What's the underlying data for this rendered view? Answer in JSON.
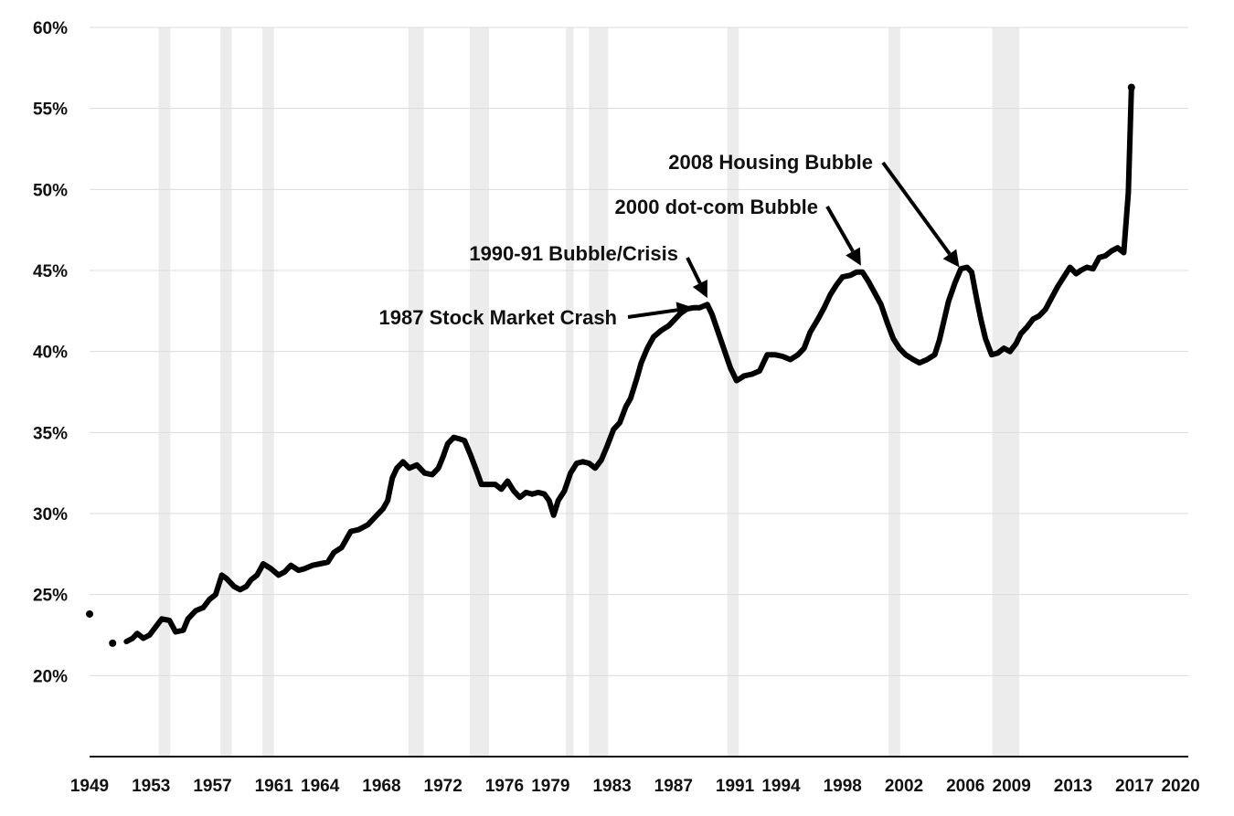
{
  "chart_data": {
    "type": "line",
    "title": "",
    "xlabel": "",
    "ylabel": "",
    "ylim": [
      15,
      60
    ],
    "yticks": [
      "20%",
      "25%",
      "30%",
      "35%",
      "40%",
      "45%",
      "50%",
      "55%",
      "60%"
    ],
    "ytick_values": [
      20,
      25,
      30,
      35,
      40,
      45,
      50,
      55,
      60
    ],
    "xlim": [
      1949.0,
      2020.5
    ],
    "xticks": [
      "1949",
      "1953",
      "1957",
      "1961",
      "1964",
      "1968",
      "1972",
      "1976",
      "1979",
      "1983",
      "1987",
      "1991",
      "1994",
      "1998",
      "2002",
      "2006",
      "2009",
      "2013",
      "2017",
      "2020"
    ],
    "xtick_values": [
      1949.0,
      1953.0,
      1957.0,
      1961.0,
      1964.0,
      1968.0,
      1972.0,
      1976.0,
      1979.0,
      1983.0,
      1987.0,
      1991.0,
      1994.0,
      1998.0,
      2002.0,
      2006.0,
      2009.0,
      2013.0,
      2017.0,
      2020.0
    ],
    "grid": true,
    "recession_shading": [
      [
        1953.5,
        1954.25
      ],
      [
        1957.5,
        1958.25
      ],
      [
        1960.25,
        1961.0
      ],
      [
        1969.75,
        1970.75
      ],
      [
        1973.75,
        1975.0
      ],
      [
        1980.0,
        1980.5
      ],
      [
        1981.5,
        1982.75
      ],
      [
        1990.5,
        1991.25
      ],
      [
        2001.0,
        2001.75
      ],
      [
        2007.75,
        2009.5
      ]
    ],
    "isolated_points": [
      {
        "x": 1949.0,
        "y": 23.8
      },
      {
        "x": 1950.5,
        "y": 22.0
      }
    ],
    "series": [
      {
        "values": [
          [
            1951.4,
            22.1
          ],
          [
            1951.8,
            22.3
          ],
          [
            1952.1,
            22.6
          ],
          [
            1952.5,
            22.3
          ],
          [
            1952.9,
            22.5
          ],
          [
            1953.3,
            23.0
          ],
          [
            1953.7,
            23.5
          ],
          [
            1954.2,
            23.4
          ],
          [
            1954.6,
            22.7
          ],
          [
            1955.1,
            22.8
          ],
          [
            1955.4,
            23.5
          ],
          [
            1955.9,
            24.0
          ],
          [
            1956.4,
            24.2
          ],
          [
            1956.8,
            24.7
          ],
          [
            1957.2,
            25.0
          ],
          [
            1957.6,
            26.2
          ],
          [
            1957.9,
            26.0
          ],
          [
            1958.4,
            25.5
          ],
          [
            1958.8,
            25.3
          ],
          [
            1959.2,
            25.5
          ],
          [
            1959.5,
            25.9
          ],
          [
            1959.9,
            26.2
          ],
          [
            1960.3,
            26.9
          ],
          [
            1960.8,
            26.6
          ],
          [
            1961.3,
            26.2
          ],
          [
            1961.7,
            26.4
          ],
          [
            1962.1,
            26.8
          ],
          [
            1962.6,
            26.5
          ],
          [
            1963.0,
            26.6
          ],
          [
            1963.5,
            26.8
          ],
          [
            1964.0,
            26.9
          ],
          [
            1964.5,
            27.0
          ],
          [
            1964.9,
            27.6
          ],
          [
            1965.4,
            27.9
          ],
          [
            1966.0,
            28.9
          ],
          [
            1966.5,
            29.0
          ],
          [
            1967.1,
            29.3
          ],
          [
            1967.6,
            29.8
          ],
          [
            1968.1,
            30.3
          ],
          [
            1968.4,
            30.8
          ],
          [
            1968.7,
            32.2
          ],
          [
            1969.0,
            32.8
          ],
          [
            1969.4,
            33.2
          ],
          [
            1969.8,
            32.8
          ],
          [
            1970.3,
            33.0
          ],
          [
            1970.8,
            32.5
          ],
          [
            1971.3,
            32.4
          ],
          [
            1971.7,
            32.8
          ],
          [
            1972.0,
            33.5
          ],
          [
            1972.3,
            34.3
          ],
          [
            1972.7,
            34.7
          ],
          [
            1973.1,
            34.6
          ],
          [
            1973.4,
            34.5
          ],
          [
            1973.8,
            33.6
          ],
          [
            1974.2,
            32.6
          ],
          [
            1974.5,
            31.8
          ],
          [
            1974.9,
            31.8
          ],
          [
            1975.4,
            31.8
          ],
          [
            1975.8,
            31.5
          ],
          [
            1976.2,
            32.0
          ],
          [
            1976.6,
            31.4
          ],
          [
            1977.0,
            31.0
          ],
          [
            1977.4,
            31.3
          ],
          [
            1977.8,
            31.2
          ],
          [
            1978.2,
            31.3
          ],
          [
            1978.6,
            31.2
          ],
          [
            1978.9,
            30.8
          ],
          [
            1979.2,
            29.9
          ],
          [
            1979.5,
            30.8
          ],
          [
            1979.9,
            31.4
          ],
          [
            1980.3,
            32.5
          ],
          [
            1980.7,
            33.1
          ],
          [
            1981.1,
            33.2
          ],
          [
            1981.5,
            33.1
          ],
          [
            1981.9,
            32.8
          ],
          [
            1982.3,
            33.3
          ],
          [
            1982.7,
            34.2
          ],
          [
            1983.1,
            35.2
          ],
          [
            1983.5,
            35.6
          ],
          [
            1983.9,
            36.6
          ],
          [
            1984.2,
            37.1
          ],
          [
            1984.6,
            38.3
          ],
          [
            1984.9,
            39.3
          ],
          [
            1985.3,
            40.2
          ],
          [
            1985.7,
            40.9
          ],
          [
            1986.2,
            41.3
          ],
          [
            1986.7,
            41.6
          ],
          [
            1987.2,
            42.1
          ],
          [
            1987.7,
            42.6
          ],
          [
            1988.3,
            42.7
          ],
          [
            1988.7,
            42.7
          ],
          [
            1989.2,
            42.9
          ],
          [
            1989.5,
            42.3
          ],
          [
            1989.9,
            41.2
          ],
          [
            1990.3,
            40.1
          ],
          [
            1990.7,
            39.0
          ],
          [
            1991.1,
            38.2
          ],
          [
            1991.6,
            38.5
          ],
          [
            1992.1,
            38.6
          ],
          [
            1992.6,
            38.8
          ],
          [
            1993.1,
            39.8
          ],
          [
            1993.6,
            39.8
          ],
          [
            1994.1,
            39.7
          ],
          [
            1994.6,
            39.5
          ],
          [
            1995.1,
            39.8
          ],
          [
            1995.5,
            40.2
          ],
          [
            1995.9,
            41.2
          ],
          [
            1996.4,
            42.0
          ],
          [
            1996.8,
            42.7
          ],
          [
            1997.2,
            43.5
          ],
          [
            1997.6,
            44.1
          ],
          [
            1998.0,
            44.6
          ],
          [
            1998.5,
            44.7
          ],
          [
            1998.9,
            44.9
          ],
          [
            1999.3,
            44.9
          ],
          [
            1999.7,
            44.3
          ],
          [
            2000.1,
            43.6
          ],
          [
            2000.5,
            42.9
          ],
          [
            2000.9,
            41.8
          ],
          [
            2001.3,
            40.8
          ],
          [
            2001.7,
            40.2
          ],
          [
            2002.1,
            39.8
          ],
          [
            2002.6,
            39.5
          ],
          [
            2003.0,
            39.3
          ],
          [
            2003.5,
            39.5
          ],
          [
            2004.0,
            39.8
          ],
          [
            2004.3,
            40.7
          ],
          [
            2004.6,
            41.9
          ],
          [
            2004.9,
            43.1
          ],
          [
            2005.3,
            44.2
          ],
          [
            2005.7,
            45.1
          ],
          [
            2006.1,
            45.2
          ],
          [
            2006.4,
            44.9
          ],
          [
            2006.7,
            43.4
          ],
          [
            2007.0,
            42.0
          ],
          [
            2007.3,
            40.8
          ],
          [
            2007.7,
            39.8
          ],
          [
            2008.1,
            39.9
          ],
          [
            2008.5,
            40.2
          ],
          [
            2008.9,
            40.0
          ],
          [
            2009.3,
            40.5
          ],
          [
            2009.6,
            41.1
          ],
          [
            2010.0,
            41.5
          ],
          [
            2010.4,
            42.0
          ],
          [
            2010.8,
            42.2
          ],
          [
            2011.2,
            42.6
          ],
          [
            2011.6,
            43.3
          ],
          [
            2012.0,
            44.0
          ],
          [
            2012.4,
            44.6
          ],
          [
            2012.8,
            45.2
          ],
          [
            2013.2,
            44.8
          ],
          [
            2013.5,
            45.0
          ],
          [
            2013.9,
            45.2
          ],
          [
            2014.3,
            45.1
          ],
          [
            2014.7,
            45.8
          ],
          [
            2015.1,
            45.9
          ],
          [
            2015.5,
            46.2
          ],
          [
            2015.9,
            46.4
          ],
          [
            2016.3,
            46.1
          ],
          [
            2016.6,
            49.8
          ],
          [
            2016.8,
            56.3
          ]
        ]
      }
    ],
    "annotations": [
      {
        "text": "1987 Stock Market Crash",
        "arrow_x": 1988.3,
        "arrow_y": 42.7
      },
      {
        "text": "1990-91 Bubble/Crisis",
        "arrow_x": 1989.2,
        "arrow_y": 43.3
      },
      {
        "text": "2000 dot-com Bubble",
        "arrow_x": 1999.2,
        "arrow_y": 45.3
      },
      {
        "text": "2008 Housing Bubble",
        "arrow_x": 2005.6,
        "arrow_y": 45.2
      }
    ]
  }
}
